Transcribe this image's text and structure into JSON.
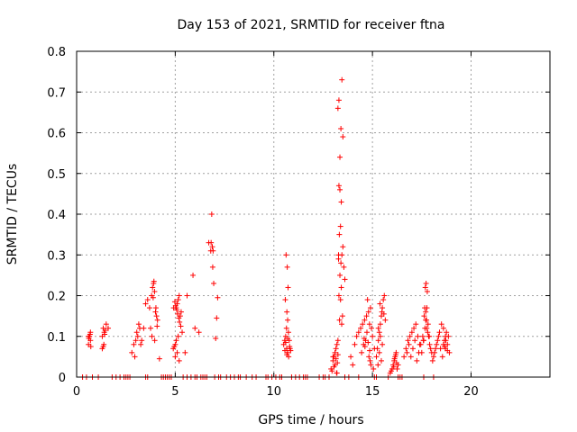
{
  "chart_data": {
    "type": "scatter",
    "title": "Day 153 of 2021, SRMTID for receiver ftna",
    "xlabel": "GPS time / hours",
    "ylabel": "SRMTID / TECUs",
    "xlim": [
      0,
      24
    ],
    "ylim": [
      0,
      0.8
    ],
    "xticks": [
      0,
      5,
      10,
      15,
      20
    ],
    "xtick_labels": [
      "0",
      "5",
      "10",
      "15",
      "20"
    ],
    "yticks": [
      0,
      0.1,
      0.2,
      0.3,
      0.4,
      0.5,
      0.6,
      0.7,
      0.8
    ],
    "ytick_labels": [
      "0",
      "0.1",
      "0.2",
      "0.3",
      "0.4",
      "0.5",
      "0.6",
      "0.7",
      "0.8"
    ],
    "grid": true,
    "marker": "+",
    "color": "#ff0000",
    "series": [
      {
        "name": "SRMTID",
        "x": [
          0.6,
          0.7,
          0.65,
          0.7,
          0.6,
          0.68,
          0.72,
          0.62,
          1.3,
          1.35,
          1.4,
          1.45,
          1.35,
          1.42,
          1.3,
          1.5,
          1.6,
          1.38,
          2.8,
          2.9,
          3.0,
          3.1,
          3.2,
          3.05,
          2.95,
          3.15,
          3.25,
          3.3,
          3.4,
          3.5,
          3.6,
          3.7,
          3.8,
          3.85,
          3.9,
          3.95,
          4.0,
          4.05,
          4.1,
          3.75,
          3.88,
          3.92,
          4.02,
          4.08,
          3.82,
          3.96,
          4.2,
          4.9,
          4.95,
          5.0,
          5.05,
          5.1,
          5.15,
          5.2,
          5.25,
          5.3,
          4.98,
          5.02,
          5.08,
          5.12,
          5.18,
          5.22,
          5.28,
          5.35,
          5.0,
          5.1,
          5.05,
          5.15,
          5.2,
          4.92,
          5.5,
          5.6,
          5.9,
          6.0,
          6.2,
          6.7,
          6.8,
          6.85,
          6.9,
          6.95,
          6.82,
          6.88,
          6.92,
          7.05,
          7.1,
          7.15,
          10.5,
          10.55,
          10.6,
          10.65,
          10.7,
          10.75,
          10.8,
          10.85,
          10.62,
          10.68,
          10.72,
          10.58,
          10.66,
          10.7,
          10.64,
          10.74,
          10.6,
          10.7,
          10.56,
          10.78,
          10.82,
          10.66,
          12.9,
          13.0,
          13.05,
          13.1,
          13.15,
          13.2,
          13.25,
          13.3,
          13.35,
          13.4,
          13.45,
          13.5,
          13.55,
          13.6,
          13.28,
          13.32,
          13.38,
          13.42,
          13.3,
          13.35,
          13.4,
          13.25,
          13.3,
          13.45,
          13.5,
          13.35,
          13.42,
          13.38,
          13.28,
          13.48,
          13.33,
          13.44,
          13.2,
          13.1,
          13.15,
          13.0,
          13.05,
          12.95,
          13.25,
          13.22,
          13.18,
          13.9,
          14.0,
          14.1,
          14.2,
          14.3,
          14.4,
          14.5,
          14.6,
          14.7,
          14.8,
          14.9,
          14.95,
          15.0,
          15.1,
          14.75,
          14.85,
          14.65,
          14.55,
          14.45,
          14.82,
          14.88,
          14.92,
          15.05,
          14.72,
          14.78,
          14.86,
          14.62,
          14.58,
          15.2,
          15.25,
          15.3,
          15.35,
          15.4,
          15.45,
          15.5,
          15.55,
          15.6,
          15.65,
          15.3,
          15.4,
          15.5,
          15.35,
          15.45,
          15.38,
          15.48,
          15.28,
          15.58,
          15.9,
          16.0,
          16.05,
          16.1,
          16.15,
          16.2,
          16.25,
          16.3,
          15.95,
          16.12,
          16.22,
          16.08,
          16.18,
          16.6,
          16.7,
          16.8,
          16.9,
          17.0,
          17.1,
          17.2,
          17.3,
          17.4,
          17.5,
          17.6,
          17.65,
          17.7,
          17.75,
          17.8,
          17.85,
          17.9,
          17.95,
          18.0,
          18.1,
          18.2,
          18.3,
          18.4,
          18.5,
          18.6,
          18.7,
          18.8,
          18.9,
          17.72,
          17.78,
          17.68,
          17.62,
          17.82,
          17.88,
          17.58,
          17.66,
          17.74,
          17.7,
          17.76,
          18.05,
          18.15,
          18.25,
          18.35,
          18.45,
          18.55,
          18.65,
          18.75,
          18.85,
          16.75,
          16.85,
          16.95,
          17.05,
          17.15,
          17.25,
          17.35,
          17.45,
          17.55,
          18.6,
          18.7,
          18.8,
          18.72,
          18.66,
          0.3,
          0.5,
          0.8,
          1.1,
          1.8,
          2.0,
          2.2,
          2.4,
          2.5,
          2.6,
          2.7,
          3.5,
          3.6,
          4.3,
          4.4,
          4.5,
          4.6,
          4.7,
          4.8,
          5.4,
          5.6,
          5.8,
          6.0,
          6.1,
          6.3,
          6.4,
          6.5,
          6.6,
          7.0,
          7.2,
          7.3,
          7.6,
          7.8,
          8.0,
          8.2,
          8.3,
          8.6,
          8.9,
          9.1,
          9.6,
          9.7,
          9.9,
          10.1,
          10.3,
          10.4,
          10.9,
          11.1,
          11.3,
          11.5,
          11.6,
          11.7,
          12.3,
          12.5,
          12.6,
          12.8,
          13.6,
          13.8,
          14.3,
          15.1,
          15.2,
          15.8,
          16.3,
          16.4,
          16.5,
          17.6,
          18.1
        ],
        "y": [
          0.08,
          0.09,
          0.1,
          0.11,
          0.1,
          0.105,
          0.075,
          0.095,
          0.07,
          0.075,
          0.11,
          0.115,
          0.12,
          0.105,
          0.1,
          0.13,
          0.12,
          0.08,
          0.06,
          0.08,
          0.09,
          0.1,
          0.12,
          0.11,
          0.05,
          0.13,
          0.08,
          0.09,
          0.12,
          0.18,
          0.19,
          0.17,
          0.2,
          0.22,
          0.23,
          0.21,
          0.16,
          0.15,
          0.14,
          0.12,
          0.195,
          0.235,
          0.17,
          0.125,
          0.1,
          0.09,
          0.045,
          0.07,
          0.075,
          0.08,
          0.17,
          0.18,
          0.19,
          0.2,
          0.15,
          0.16,
          0.185,
          0.175,
          0.165,
          0.155,
          0.145,
          0.135,
          0.125,
          0.11,
          0.05,
          0.06,
          0.09,
          0.1,
          0.04,
          0.17,
          0.06,
          0.2,
          0.25,
          0.12,
          0.11,
          0.33,
          0.31,
          0.4,
          0.27,
          0.23,
          0.33,
          0.32,
          0.31,
          0.095,
          0.145,
          0.195,
          0.08,
          0.09,
          0.1,
          0.07,
          0.06,
          0.05,
          0.075,
          0.065,
          0.3,
          0.27,
          0.22,
          0.19,
          0.16,
          0.14,
          0.12,
          0.11,
          0.085,
          0.095,
          0.065,
          0.09,
          0.07,
          0.055,
          0.02,
          0.04,
          0.05,
          0.06,
          0.07,
          0.08,
          0.09,
          0.2,
          0.25,
          0.28,
          0.3,
          0.32,
          0.27,
          0.24,
          0.3,
          0.35,
          0.37,
          0.43,
          0.47,
          0.54,
          0.61,
          0.66,
          0.68,
          0.73,
          0.59,
          0.46,
          0.22,
          0.19,
          0.29,
          0.15,
          0.14,
          0.13,
          0.01,
          0.03,
          0.045,
          0.05,
          0.025,
          0.015,
          0.055,
          0.035,
          0.01,
          0.05,
          0.03,
          0.08,
          0.1,
          0.11,
          0.12,
          0.13,
          0.14,
          0.15,
          0.16,
          0.17,
          0.12,
          0.1,
          0.07,
          0.19,
          0.13,
          0.09,
          0.08,
          0.06,
          0.05,
          0.04,
          0.03,
          0.02,
          0.11,
          0.085,
          0.065,
          0.075,
          0.095,
          0.05,
          0.07,
          0.09,
          0.11,
          0.13,
          0.15,
          0.17,
          0.19,
          0.2,
          0.14,
          0.12,
          0.1,
          0.08,
          0.06,
          0.04,
          0.18,
          0.16,
          0.03,
          0.155,
          0.01,
          0.02,
          0.03,
          0.04,
          0.05,
          0.06,
          0.02,
          0.03,
          0.015,
          0.045,
          0.035,
          0.025,
          0.055,
          0.05,
          0.07,
          0.09,
          0.1,
          0.11,
          0.12,
          0.13,
          0.1,
          0.08,
          0.06,
          0.09,
          0.17,
          0.14,
          0.12,
          0.11,
          0.1,
          0.08,
          0.07,
          0.06,
          0.05,
          0.07,
          0.09,
          0.11,
          0.13,
          0.12,
          0.1,
          0.08,
          0.06,
          0.23,
          0.21,
          0.22,
          0.15,
          0.13,
          0.1,
          0.09,
          0.12,
          0.14,
          0.16,
          0.17,
          0.04,
          0.06,
          0.08,
          0.1,
          0.07,
          0.05,
          0.09,
          0.11,
          0.1,
          0.06,
          0.08,
          0.05,
          0.07,
          0.09,
          0.04,
          0.06,
          0.08,
          0.1,
          0.08,
          0.07,
          0.065,
          0.09,
          0.075,
          0,
          0,
          0,
          0,
          0,
          0,
          0,
          0,
          0,
          0,
          0,
          0,
          0,
          0,
          0,
          0,
          0,
          0,
          0,
          0,
          0,
          0,
          0,
          0,
          0,
          0,
          0,
          0,
          0,
          0,
          0,
          0,
          0,
          0,
          0,
          0,
          0,
          0,
          0,
          0,
          0,
          0,
          0,
          0,
          0,
          0,
          0,
          0,
          0,
          0,
          0,
          0,
          0,
          0,
          0,
          0,
          0,
          0,
          0,
          0,
          0,
          0,
          0,
          0,
          0,
          0
        ]
      }
    ]
  }
}
